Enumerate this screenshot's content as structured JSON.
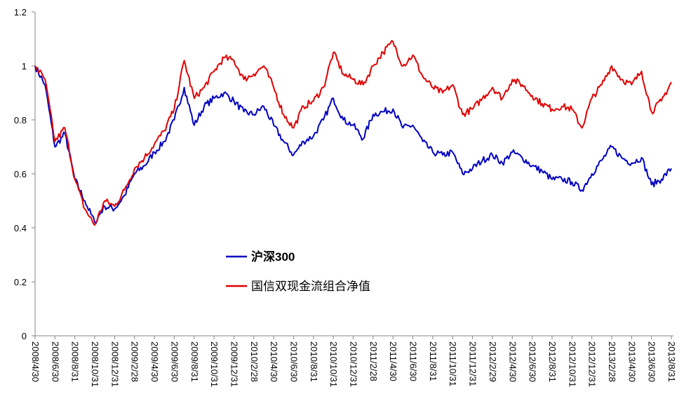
{
  "chart_data": {
    "type": "line",
    "title": "",
    "xlabel": "",
    "ylabel": "",
    "ylim": [
      0,
      1.2
    ],
    "yticks": [
      "0",
      "0.2",
      "0.4",
      "0.6",
      "0.8",
      "1",
      "1.2"
    ],
    "grid": false,
    "legend_position": "center-left",
    "x_tick_labels": [
      "2008/4/30",
      "2008/6/30",
      "2008/8/31",
      "2008/10/31",
      "2008/12/31",
      "2009/2/28",
      "2009/4/30",
      "2009/6/30",
      "2009/8/31",
      "2009/10/31",
      "2009/12/31",
      "2010/2/28",
      "2010/4/30",
      "2010/6/30",
      "2010/8/31",
      "2010/10/31",
      "2010/12/31",
      "2011/2/28",
      "2011/4/30",
      "2011/6/30",
      "2011/8/31",
      "2011/10/31",
      "2011/12/31",
      "2012/2/29",
      "2012/4/30",
      "2012/6/30",
      "2012/8/31",
      "2012/10/31",
      "2012/12/31",
      "2013/2/28",
      "2013/4/30",
      "2013/6/30",
      "2013/8/31"
    ],
    "x_unit": "months since 2008/4/30",
    "series": [
      {
        "name": "沪深300",
        "color": "#0000C0",
        "values": [
          1.0,
          0.93,
          0.7,
          0.75,
          0.58,
          0.5,
          0.42,
          0.48,
          0.47,
          0.52,
          0.6,
          0.63,
          0.68,
          0.72,
          0.8,
          0.92,
          0.78,
          0.85,
          0.88,
          0.9,
          0.87,
          0.83,
          0.82,
          0.85,
          0.78,
          0.72,
          0.67,
          0.72,
          0.74,
          0.8,
          0.88,
          0.8,
          0.78,
          0.73,
          0.82,
          0.83,
          0.84,
          0.77,
          0.78,
          0.72,
          0.68,
          0.67,
          0.68,
          0.6,
          0.62,
          0.65,
          0.67,
          0.64,
          0.68,
          0.66,
          0.63,
          0.61,
          0.58,
          0.58,
          0.57,
          0.54,
          0.6,
          0.65,
          0.7,
          0.66,
          0.64,
          0.66,
          0.56,
          0.58,
          0.62
        ]
      },
      {
        "name": "国信双现金流组合净值",
        "color": "#E00000",
        "values": [
          1.0,
          0.95,
          0.72,
          0.77,
          0.58,
          0.47,
          0.41,
          0.5,
          0.48,
          0.54,
          0.62,
          0.66,
          0.71,
          0.76,
          0.84,
          1.02,
          0.88,
          0.92,
          0.98,
          1.03,
          1.02,
          0.95,
          0.97,
          1.0,
          0.92,
          0.82,
          0.77,
          0.85,
          0.87,
          0.92,
          1.05,
          0.97,
          0.95,
          0.93,
          1.0,
          1.05,
          1.09,
          1.0,
          1.04,
          0.96,
          0.92,
          0.9,
          0.93,
          0.82,
          0.84,
          0.88,
          0.92,
          0.88,
          0.95,
          0.93,
          0.89,
          0.86,
          0.84,
          0.85,
          0.84,
          0.77,
          0.88,
          0.93,
          1.0,
          0.95,
          0.93,
          0.98,
          0.83,
          0.87,
          0.94
        ]
      }
    ]
  }
}
